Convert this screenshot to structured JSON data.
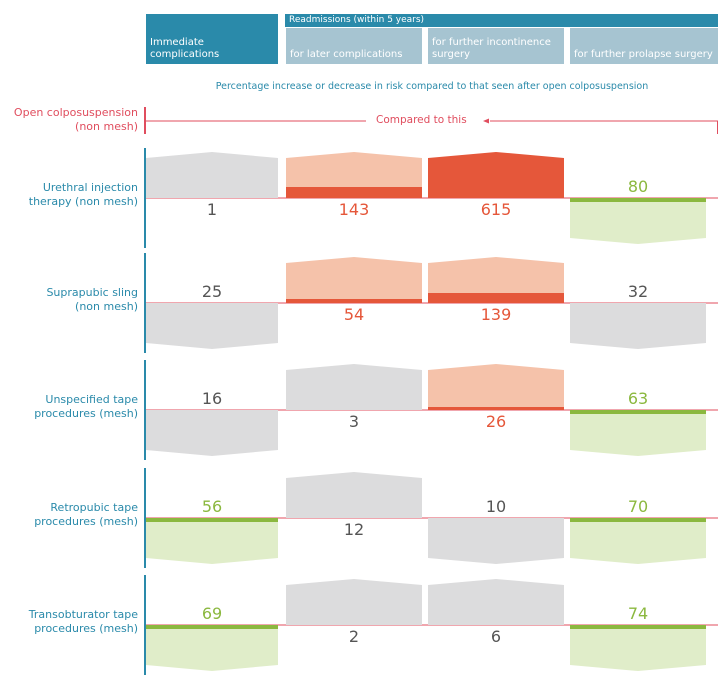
{
  "header": {
    "group_label": "Readmissions (within 5 years)",
    "columns": [
      "Immediate complications",
      "for later complications",
      "for further incontinence surgery",
      "for further prolapse surgery"
    ]
  },
  "subtitle": "Percentage increase or decrease in risk compared to that seen after open colposuspension",
  "reference": {
    "label_line1": "Open colposuspension",
    "label_line2": "(non mesh)",
    "compare_text": "Compared to this"
  },
  "colors": {
    "header": "#2a8aaa",
    "header_light": "#a6c4d1",
    "reference": "#e04d5e",
    "increase_strong": "#e5573a",
    "increase_light": "#f5c2aa",
    "decrease_fill": "#e0edc9",
    "decrease_line": "#8bb83f",
    "neutral_fill": "#dcdcdd",
    "neutral_text": "#555555"
  },
  "chart_data": {
    "type": "table",
    "title": "",
    "categories": [
      "Immediate complications",
      "for later complications",
      "for further incontinence surgery",
      "for further prolapse surgery"
    ],
    "rows": [
      {
        "label_line1": "Urethral injection",
        "label_line2": "therapy (non mesh)",
        "values": [
          1,
          143,
          615,
          80
        ],
        "direction": [
          "up",
          "up",
          "up",
          "down"
        ],
        "significant": [
          false,
          true,
          true,
          true
        ]
      },
      {
        "label_line1": "Suprapubic sling",
        "label_line2": "(non mesh)",
        "values": [
          25,
          54,
          139,
          32
        ],
        "direction": [
          "down",
          "up",
          "up",
          "down"
        ],
        "significant": [
          false,
          true,
          true,
          false
        ]
      },
      {
        "label_line1": "Unspecified tape",
        "label_line2": "procedures (mesh)",
        "values": [
          16,
          3,
          26,
          63
        ],
        "direction": [
          "down",
          "up",
          "up",
          "down"
        ],
        "significant": [
          false,
          false,
          true,
          true
        ]
      },
      {
        "label_line1": "Retropubic tape",
        "label_line2": "procedures (mesh)",
        "values": [
          56,
          12,
          10,
          70
        ],
        "direction": [
          "down",
          "up",
          "down",
          "down"
        ],
        "significant": [
          true,
          false,
          false,
          true
        ]
      },
      {
        "label_line1": "Transobturator tape",
        "label_line2": "procedures (mesh)",
        "values": [
          69,
          2,
          6,
          74
        ],
        "direction": [
          "down",
          "up",
          "up",
          "down"
        ],
        "significant": [
          true,
          false,
          false,
          true
        ]
      }
    ]
  }
}
